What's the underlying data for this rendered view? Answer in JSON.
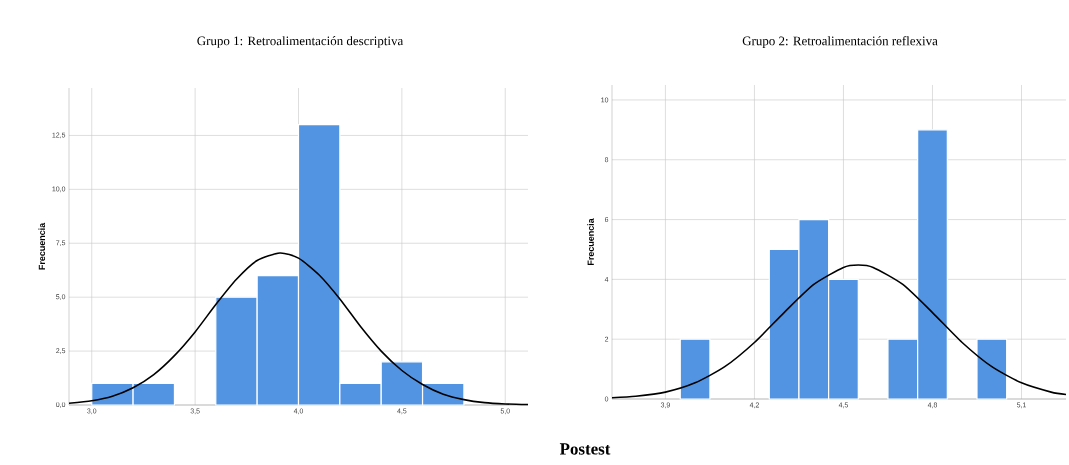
{
  "chart_data": [
    {
      "type": "histogram",
      "title": "Grupo 1: Retroalimentación descriptiva",
      "ylabel": "Frecuencia",
      "annotations": [
        "Postest"
      ],
      "grid": true,
      "xlim": [
        2.89,
        5.11
      ],
      "ylim": [
        0,
        14.7
      ],
      "xticks": [
        {
          "value": 3.0,
          "label": "3,0"
        },
        {
          "value": 3.5,
          "label": "3,5"
        },
        {
          "value": 4.0,
          "label": "4,0"
        },
        {
          "value": 4.5,
          "label": "4,5"
        },
        {
          "value": 5.0,
          "label": "5,0"
        }
      ],
      "yticks": [
        {
          "value": 0,
          "label": "0,0"
        },
        {
          "value": 2.5,
          "label": "2,5"
        },
        {
          "value": 5,
          "label": "5,0"
        },
        {
          "value": 7.5,
          "label": "7,5"
        },
        {
          "value": 10,
          "label": "10,0"
        },
        {
          "value": 12.5,
          "label": "12,5"
        }
      ],
      "series": [
        {
          "color": "#5294e2",
          "bins": [
            3.0,
            3.2,
            3.4,
            3.6,
            3.8,
            4.0,
            4.2,
            4.4,
            4.6,
            4.8
          ],
          "values": [
            1,
            1,
            0,
            5,
            6,
            13,
            1,
            2,
            1
          ]
        },
        {
          "type": "line",
          "color": "#000000",
          "x": [
            2.89,
            3.0,
            3.1,
            3.2,
            3.3,
            3.4,
            3.5,
            3.6,
            3.7,
            3.8,
            3.91,
            4.0,
            4.1,
            4.2,
            4.3,
            4.4,
            4.5,
            4.6,
            4.7,
            4.8,
            4.9,
            5.0,
            5.11
          ],
          "values": [
            0.08,
            0.2,
            0.41,
            0.8,
            1.41,
            2.29,
            3.39,
            4.66,
            5.83,
            6.7,
            7.05,
            6.81,
            6.03,
            4.92,
            3.64,
            2.5,
            1.6,
            0.95,
            0.5,
            0.25,
            0.11,
            0.05,
            0.02
          ]
        }
      ]
    },
    {
      "type": "histogram",
      "title": "Grupo 2: Retroalimentación reflexiva",
      "ylabel": "Frecuencia",
      "grid": true,
      "xlim": [
        3.72,
        5.25
      ],
      "ylim": [
        0,
        10.5
      ],
      "xticks": [
        {
          "value": 3.9,
          "label": "3,9"
        },
        {
          "value": 4.2,
          "label": "4,2"
        },
        {
          "value": 4.5,
          "label": "4,5"
        },
        {
          "value": 4.8,
          "label": "4,8"
        },
        {
          "value": 5.1,
          "label": "5,1"
        }
      ],
      "yticks": [
        0,
        2,
        4,
        6,
        8,
        10
      ],
      "series": [
        {
          "color": "#5294e2",
          "bins": [
            3.95,
            4.05,
            4.15,
            4.25,
            4.35,
            4.45,
            4.55,
            4.65,
            4.75,
            4.85,
            4.95,
            5.05
          ],
          "values": [
            2,
            0,
            0,
            5,
            6,
            4,
            0,
            2,
            9,
            0,
            2
          ]
        },
        {
          "type": "line",
          "color": "#000000",
          "x": [
            3.72,
            3.8,
            3.9,
            4.0,
            4.1,
            4.2,
            4.3,
            4.4,
            4.5,
            4.55,
            4.6,
            4.7,
            4.8,
            4.9,
            5.0,
            5.1,
            5.2,
            5.25
          ],
          "values": [
            0.04,
            0.09,
            0.23,
            0.54,
            1.08,
            1.89,
            2.89,
            3.83,
            4.4,
            4.48,
            4.4,
            3.83,
            2.89,
            1.89,
            1.08,
            0.54,
            0.23,
            0.15
          ]
        }
      ]
    }
  ]
}
